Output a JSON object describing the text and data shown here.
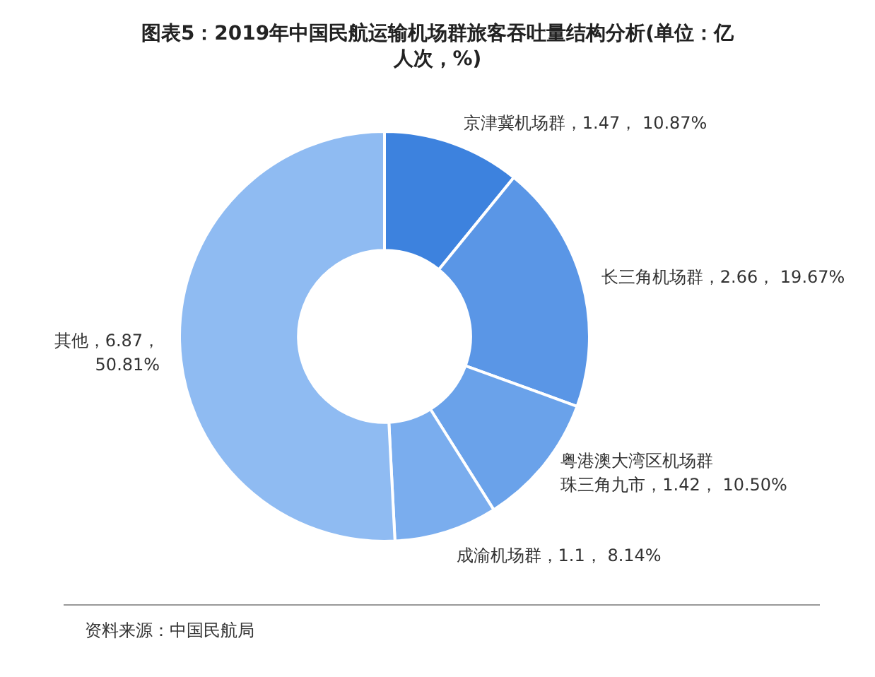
{
  "chart_data": {
    "type": "donut",
    "title": "图表5：2019年中国民航运输机场群旅客吞吐量结构分析(单位：亿人次，%)",
    "categories": [
      "京津冀机场群",
      "长三角机场群",
      "粤港澳大湾区机场群珠三角九市",
      "成渝机场群",
      "其他"
    ],
    "values": [
      1.47,
      2.66,
      1.42,
      1.1,
      6.87
    ],
    "value_labels": [
      "1.47， 10.87%",
      "2.66， 19.67%",
      "1.42， 10.50%",
      "1.1， 8.14%",
      "6.87， 50.81%"
    ],
    "colors": [
      "#3d82de",
      "#5a96e6",
      "#6aa2ea",
      "#7aadee",
      "#8fbbf2"
    ],
    "annotations": [
      "资料来源：中国民航局"
    ]
  }
}
